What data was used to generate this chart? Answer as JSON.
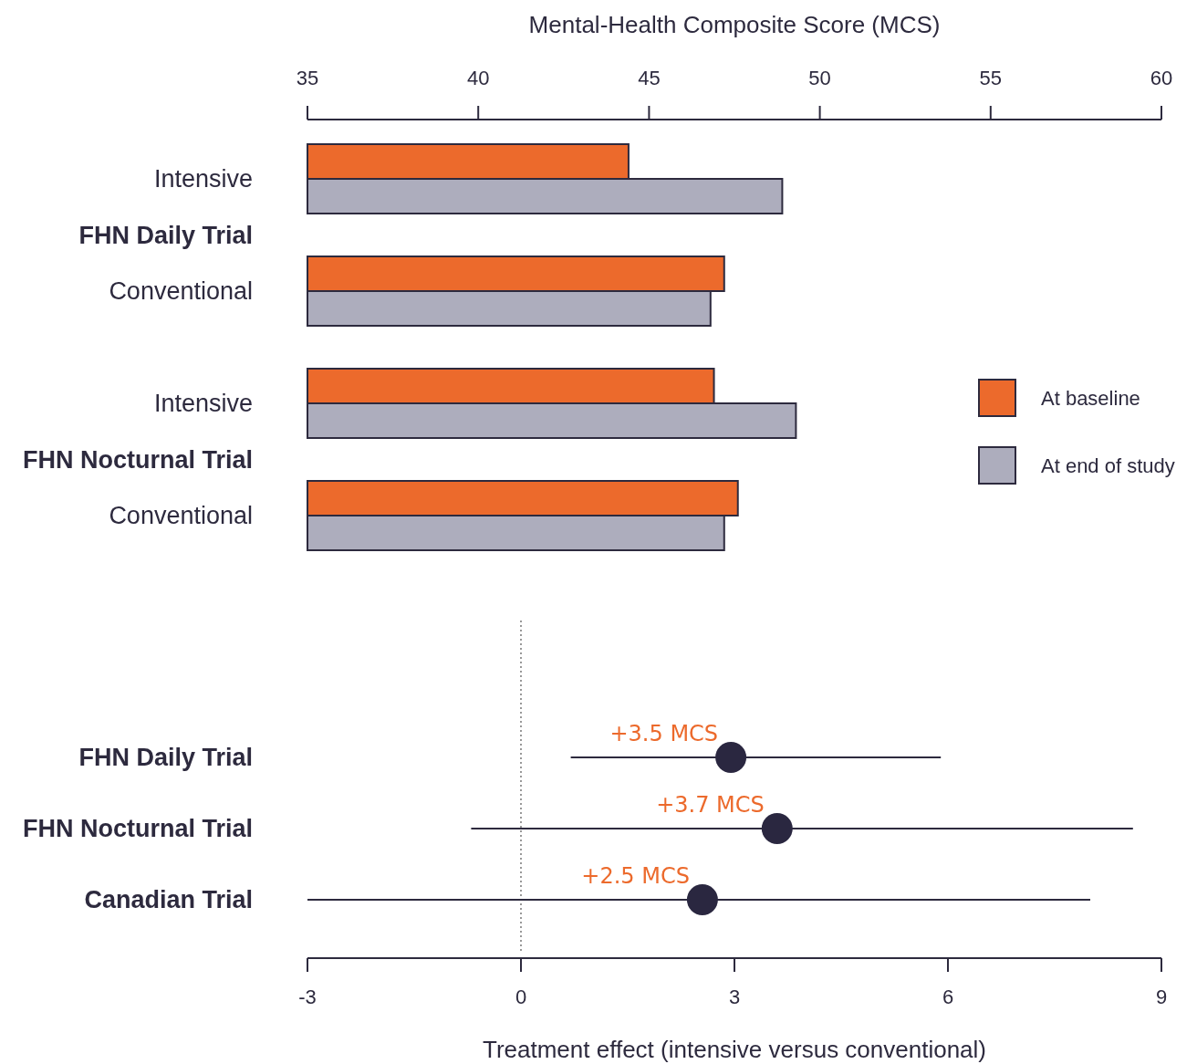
{
  "chart_data": [
    {
      "type": "bar",
      "orientation": "horizontal",
      "xlabel": "Mental-Health Composite Score (MCS)",
      "categories": [
        "Intensive",
        "FHN Daily Trial",
        "Conventional",
        null,
        "Intensive",
        "FHN Nocturnal Trial",
        "Conventional"
      ],
      "series": [
        {
          "name": "At baseline",
          "color": "#ec6a2c",
          "values": [
            44.4,
            null,
            47.2,
            null,
            46.9,
            null,
            47.6
          ]
        },
        {
          "name": "At end of study",
          "color": "#adadbd",
          "values": [
            48.9,
            null,
            46.8,
            null,
            49.3,
            null,
            47.2
          ]
        }
      ],
      "xlim": [
        35,
        60
      ],
      "xticks": [
        35,
        40,
        45,
        50,
        55,
        60
      ],
      "legend": "right",
      "grid": false
    },
    {
      "type": "scatter",
      "orientation": "horizontal",
      "xlabel": "Treatment effect (intensive versus conventional)",
      "categories": [
        "FHN Daily Trial",
        "FHN Nocturnal Trial",
        "Canadian Trial"
      ],
      "series": [
        {
          "color": "#2a2740",
          "values": [
            2.95,
            3.6,
            2.55
          ],
          "errors": [
            [
              0.7,
              5.9
            ],
            [
              -0.7,
              8.6
            ],
            [
              -3,
              8
            ]
          ]
        }
      ],
      "marker": "circle",
      "xlim": [
        -3,
        9
      ],
      "xticks": [
        -3,
        0,
        3,
        6,
        9
      ],
      "ref_lines": [
        {
          "axis": "x",
          "value": 0,
          "line_style": "dotted",
          "color": "#555555"
        }
      ],
      "annotations": [
        {
          "text": "+3.5 MCS",
          "x": 2.95,
          "y": "FHN Daily Trial"
        },
        {
          "text": "+3.7 MCS",
          "x": 3.6,
          "y": "FHN Nocturnal Trial"
        },
        {
          "text": "+2.5 MCS",
          "x": 2.55,
          "y": "Canadian Trial"
        }
      ],
      "grid": false
    }
  ]
}
